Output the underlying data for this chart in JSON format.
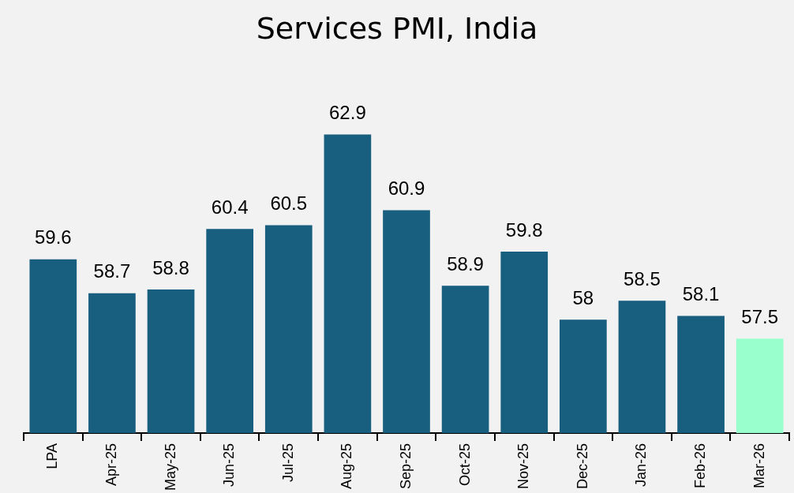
{
  "chart_data": {
    "type": "bar",
    "title": "Services PMI, India",
    "categories": [
      "LPA",
      "Apr-25",
      "May-25",
      "Jun-25",
      "Jul-25",
      "Aug-25",
      "Sep-25",
      "Oct-25",
      "Nov-25",
      "Dec-25",
      "Jan-26",
      "Feb-26",
      "Mar-26"
    ],
    "values": [
      59.6,
      58.7,
      58.8,
      60.4,
      60.5,
      62.9,
      60.9,
      58.9,
      59.8,
      58,
      58.5,
      58.1,
      57.5
    ],
    "colors": [
      "#175e7f",
      "#175e7f",
      "#175e7f",
      "#175e7f",
      "#175e7f",
      "#175e7f",
      "#175e7f",
      "#175e7f",
      "#175e7f",
      "#175e7f",
      "#175e7f",
      "#175e7f",
      "#99ffcc"
    ],
    "data_labels": true,
    "grid": false,
    "legend": false
  }
}
